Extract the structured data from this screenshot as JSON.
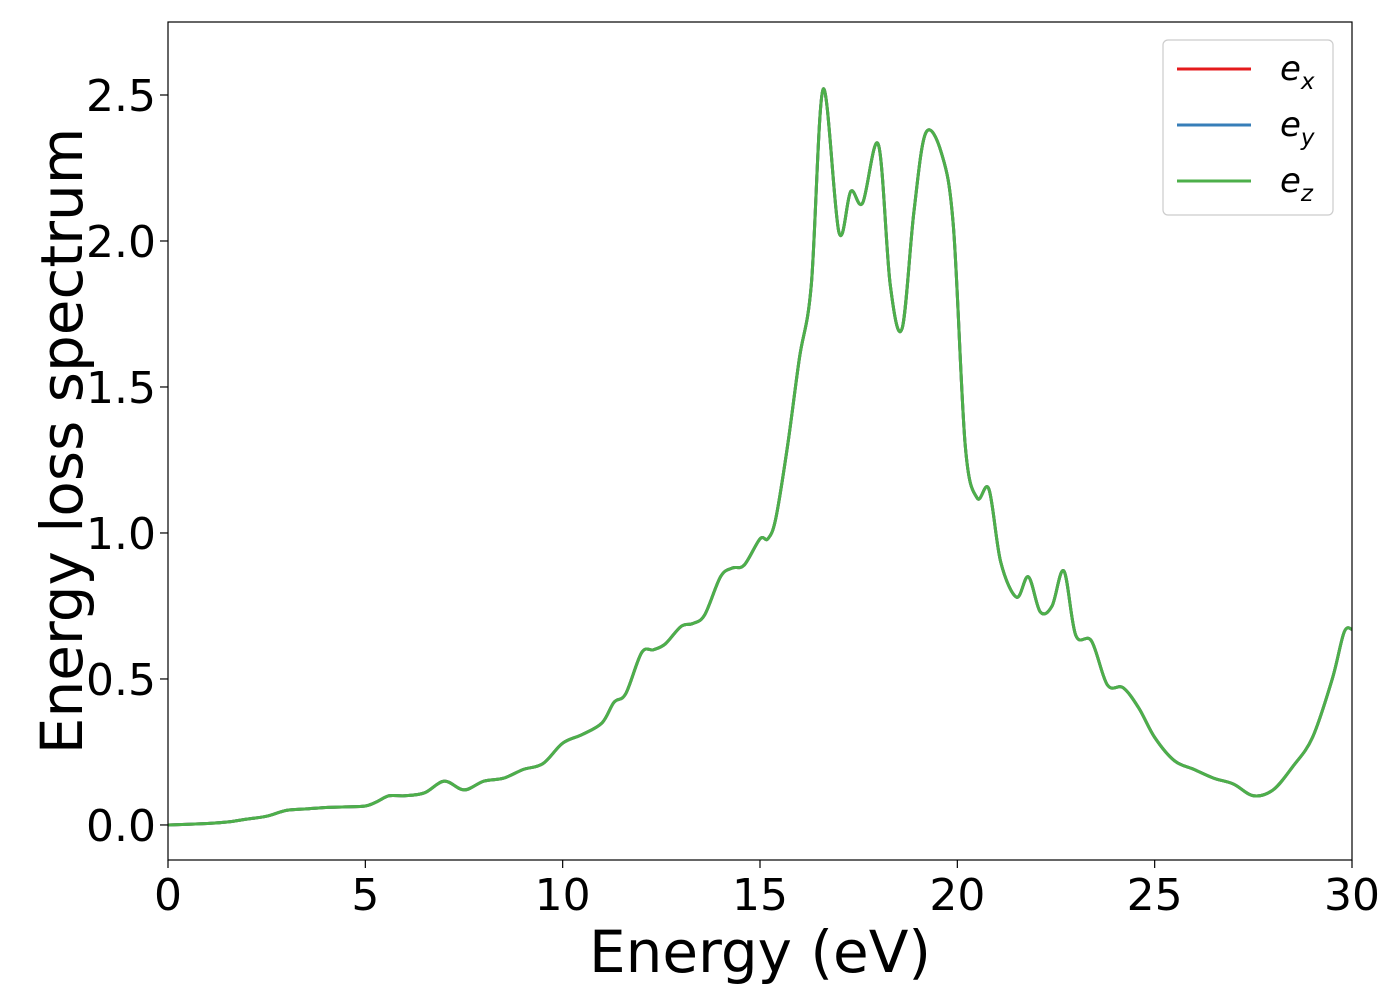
{
  "chart_data": {
    "type": "line",
    "title": "",
    "xlabel": "Energy (eV)",
    "ylabel": "Energy loss spectrum",
    "xlim": [
      0,
      30
    ],
    "ylim": [
      -0.12,
      2.75
    ],
    "xticks": [
      0,
      5,
      10,
      15,
      20,
      25,
      30
    ],
    "xtick_labels": [
      "0",
      "5",
      "10",
      "15",
      "20",
      "25",
      "30"
    ],
    "yticks": [
      0.0,
      0.5,
      1.0,
      1.5,
      2.0,
      2.5
    ],
    "ytick_labels": [
      "0.0",
      "0.5",
      "1.0",
      "1.5",
      "2.0",
      "2.5"
    ],
    "grid": false,
    "legend_position": "top-right",
    "x": [
      0,
      1,
      1.5,
      2,
      2.5,
      3,
      3.5,
      4,
      4.5,
      5,
      5.3,
      5.6,
      6,
      6.5,
      7,
      7.5,
      8,
      8.5,
      9,
      9.5,
      10,
      10.5,
      11,
      11.3,
      11.6,
      12,
      12.3,
      12.6,
      13,
      13.3,
      13.6,
      14,
      14.3,
      14.6,
      15,
      15.2,
      15.4,
      15.7,
      16,
      16.3,
      16.6,
      17,
      17.3,
      17.6,
      18,
      18.3,
      18.6,
      18.9,
      19.2,
      19.6,
      19.9,
      20.2,
      20.5,
      20.8,
      21.1,
      21.5,
      21.8,
      22.1,
      22.4,
      22.7,
      23,
      23.4,
      23.8,
      24.2,
      24.6,
      25,
      25.5,
      26,
      26.5,
      27,
      27.5,
      28,
      28.5,
      29,
      29.5,
      29.8,
      30
    ],
    "series": [
      {
        "name": "e_x",
        "label_base": "e",
        "label_sub": "x",
        "color": "#e41a1c",
        "values": [
          0,
          0.005,
          0.01,
          0.02,
          0.03,
          0.05,
          0.055,
          0.06,
          0.062,
          0.065,
          0.08,
          0.1,
          0.1,
          0.11,
          0.15,
          0.12,
          0.15,
          0.16,
          0.19,
          0.21,
          0.28,
          0.31,
          0.35,
          0.42,
          0.45,
          0.59,
          0.6,
          0.62,
          0.68,
          0.69,
          0.72,
          0.85,
          0.88,
          0.89,
          0.98,
          0.98,
          1.05,
          1.3,
          1.6,
          1.85,
          2.52,
          2.03,
          2.17,
          2.13,
          2.33,
          1.85,
          1.7,
          2.1,
          2.37,
          2.3,
          2.05,
          1.3,
          1.12,
          1.15,
          0.9,
          0.78,
          0.85,
          0.73,
          0.75,
          0.87,
          0.65,
          0.63,
          0.48,
          0.47,
          0.4,
          0.3,
          0.22,
          0.19,
          0.16,
          0.14,
          0.1,
          0.12,
          0.2,
          0.3,
          0.5,
          0.66,
          0.67
        ]
      },
      {
        "name": "e_y",
        "label_base": "e",
        "label_sub": "y",
        "color": "#377eb8",
        "values": [
          0,
          0.005,
          0.01,
          0.02,
          0.03,
          0.05,
          0.055,
          0.06,
          0.062,
          0.065,
          0.08,
          0.1,
          0.1,
          0.11,
          0.15,
          0.12,
          0.15,
          0.16,
          0.19,
          0.21,
          0.28,
          0.31,
          0.35,
          0.42,
          0.45,
          0.59,
          0.6,
          0.62,
          0.68,
          0.69,
          0.72,
          0.85,
          0.88,
          0.89,
          0.98,
          0.98,
          1.05,
          1.3,
          1.6,
          1.85,
          2.52,
          2.03,
          2.17,
          2.13,
          2.33,
          1.85,
          1.7,
          2.1,
          2.37,
          2.3,
          2.05,
          1.3,
          1.12,
          1.15,
          0.9,
          0.78,
          0.85,
          0.73,
          0.75,
          0.87,
          0.65,
          0.63,
          0.48,
          0.47,
          0.4,
          0.3,
          0.22,
          0.19,
          0.16,
          0.14,
          0.1,
          0.12,
          0.2,
          0.3,
          0.5,
          0.66,
          0.67
        ]
      },
      {
        "name": "e_z",
        "label_base": "e",
        "label_sub": "z",
        "color": "#4daf4a",
        "values": [
          0,
          0.005,
          0.01,
          0.02,
          0.03,
          0.05,
          0.055,
          0.06,
          0.062,
          0.065,
          0.08,
          0.1,
          0.1,
          0.11,
          0.15,
          0.12,
          0.15,
          0.16,
          0.19,
          0.21,
          0.28,
          0.31,
          0.35,
          0.42,
          0.45,
          0.59,
          0.6,
          0.62,
          0.68,
          0.69,
          0.72,
          0.85,
          0.88,
          0.89,
          0.98,
          0.98,
          1.05,
          1.3,
          1.6,
          1.85,
          2.52,
          2.03,
          2.17,
          2.13,
          2.33,
          1.85,
          1.7,
          2.1,
          2.37,
          2.3,
          2.05,
          1.3,
          1.12,
          1.15,
          0.9,
          0.78,
          0.85,
          0.73,
          0.75,
          0.87,
          0.65,
          0.63,
          0.48,
          0.47,
          0.4,
          0.3,
          0.22,
          0.19,
          0.16,
          0.14,
          0.1,
          0.12,
          0.2,
          0.3,
          0.5,
          0.66,
          0.67
        ]
      }
    ]
  }
}
